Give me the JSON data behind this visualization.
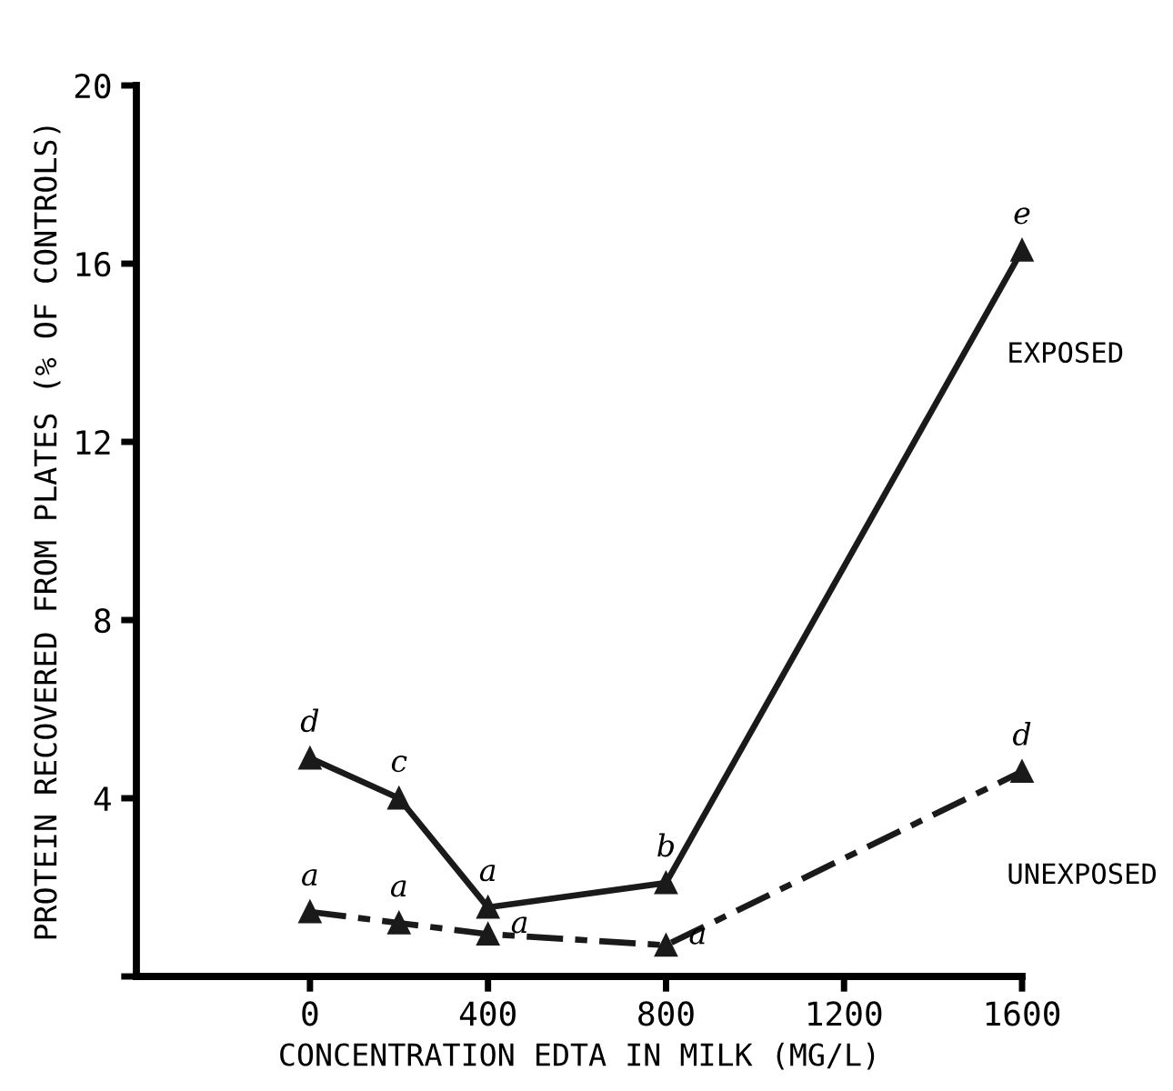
{
  "chart_data": {
    "type": "line",
    "xlabel": "CONCENTRATION EDTA IN MILK (MG/L)",
    "ylabel": "PROTEIN RECOVERED FROM PLATES (% OF CONTROLS)",
    "x": [
      0,
      200,
      400,
      800,
      1600
    ],
    "series": [
      {
        "name": "EXPOSED",
        "color": "#1a1a1a",
        "values": [
          4.9,
          4.0,
          1.55,
          2.1,
          16.3
        ],
        "line_style": "solid"
      },
      {
        "name": "UNEXPOSED",
        "color": "#1a1a1a",
        "values": [
          1.45,
          1.2,
          0.95,
          0.7,
          4.6
        ],
        "line_style": "dashed"
      }
    ],
    "marker": "triangle",
    "xlim": [
      -390,
      1600
    ],
    "xticks": [
      0,
      400,
      800,
      1200,
      1600
    ],
    "ylim": [
      0,
      20
    ],
    "yticks": [
      {
        "value": 0,
        "label": null
      },
      4,
      8,
      12,
      16,
      20
    ],
    "grid": false,
    "legend": false,
    "annotations": [
      {
        "text": "d",
        "x": 0,
        "y": 4.9
      },
      {
        "text": "c",
        "x": 200,
        "y": 4.0
      },
      {
        "text": "a",
        "x": 400,
        "y": 1.55
      },
      {
        "text": "b",
        "x": 800,
        "y": 2.1
      },
      {
        "text": "e",
        "x": 1600,
        "y": 16.3
      },
      {
        "text": "a",
        "x": 0,
        "y": 1.45
      },
      {
        "text": "a",
        "x": 200,
        "y": 1.2
      },
      {
        "text": "a",
        "x": 400,
        "y": 0.95
      },
      {
        "text": "a",
        "x": 800,
        "y": 0.7
      },
      {
        "text": "d",
        "x": 1600,
        "y": 4.6
      }
    ]
  }
}
